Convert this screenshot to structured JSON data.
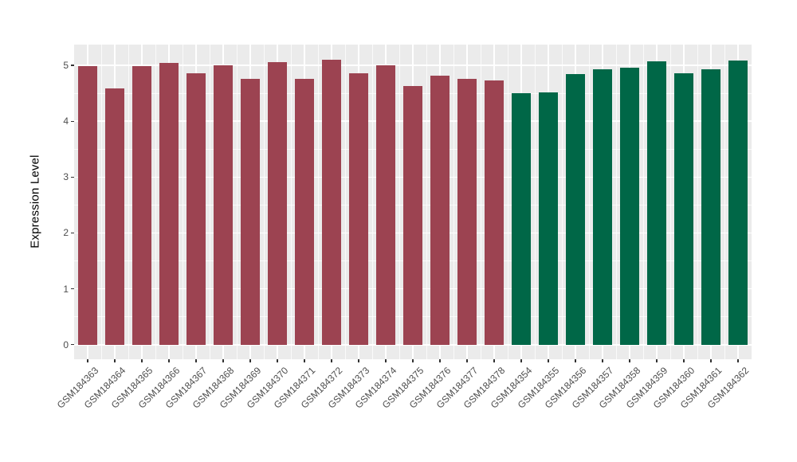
{
  "chart_data": {
    "type": "bar",
    "title": "",
    "xlabel": "",
    "ylabel": "Expression Level",
    "ylim": [
      -0.26,
      5.37
    ],
    "yticks": [
      0,
      1,
      2,
      3,
      4,
      5
    ],
    "yminor": [
      0.5,
      1.5,
      2.5,
      3.5,
      4.5
    ],
    "grid": "major and minor, white on gray panel",
    "legend": "none",
    "panel_background": "#EBEBEB",
    "gridline_color": "#FFFFFF",
    "axis_text_color": "#4D4D4D",
    "axis_title_color": "#000000",
    "bar_palette": {
      "group1": "#9C4351",
      "group2": "#006747"
    },
    "categories": [
      "GSM184363",
      "GSM184364",
      "GSM184365",
      "GSM184366",
      "GSM184367",
      "GSM184368",
      "GSM184369",
      "GSM184370",
      "GSM184371",
      "GSM184372",
      "GSM184373",
      "GSM184374",
      "GSM184375",
      "GSM184376",
      "GSM184377",
      "GSM184378",
      "GSM184354",
      "GSM184355",
      "GSM184356",
      "GSM184357",
      "GSM184358",
      "GSM184359",
      "GSM184360",
      "GSM184361",
      "GSM184362"
    ],
    "values": [
      4.98,
      4.59,
      4.99,
      5.04,
      4.86,
      5.0,
      4.76,
      5.06,
      4.75,
      5.1,
      4.85,
      5.0,
      4.63,
      4.82,
      4.75,
      4.73,
      4.5,
      4.52,
      4.84,
      4.93,
      4.96,
      5.07,
      4.85,
      4.93,
      5.09
    ],
    "colors": [
      "#9C4351",
      "#9C4351",
      "#9C4351",
      "#9C4351",
      "#9C4351",
      "#9C4351",
      "#9C4351",
      "#9C4351",
      "#9C4351",
      "#9C4351",
      "#9C4351",
      "#9C4351",
      "#9C4351",
      "#9C4351",
      "#9C4351",
      "#9C4351",
      "#006747",
      "#006747",
      "#006747",
      "#006747",
      "#006747",
      "#006747",
      "#006747",
      "#006747",
      "#006747"
    ]
  }
}
